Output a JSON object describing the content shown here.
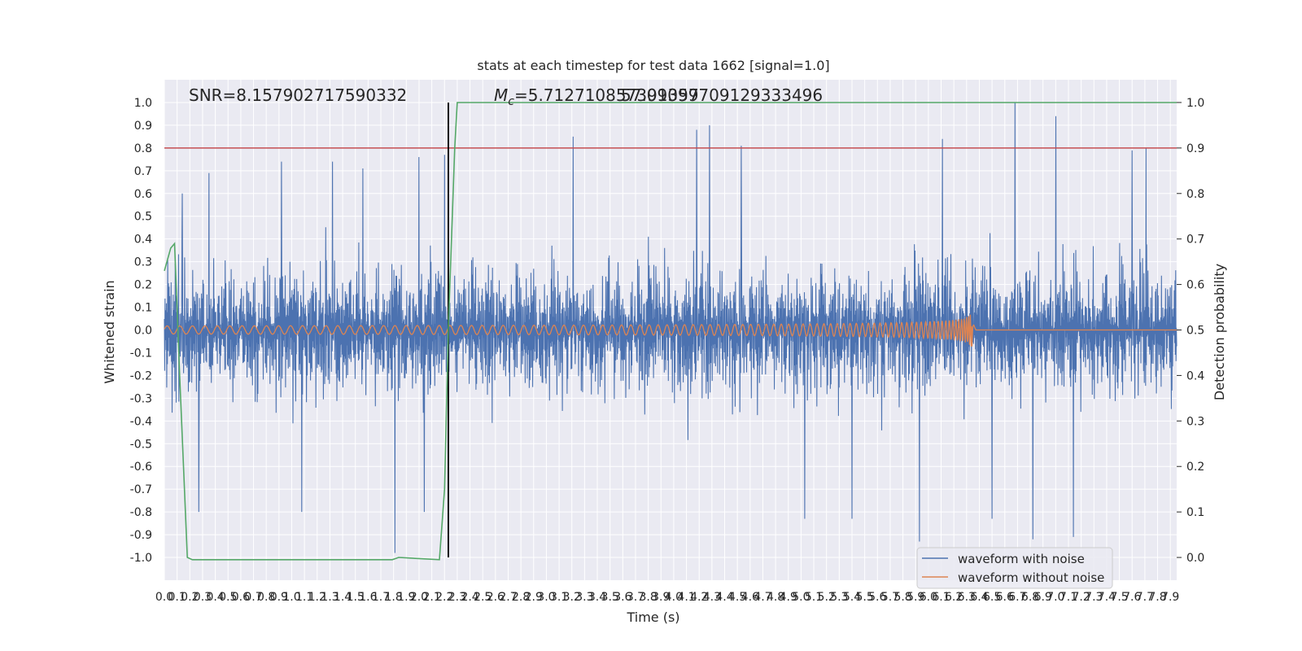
{
  "chart_data": {
    "type": "line",
    "title": "stats at each timestep for test data 1662 [signal=1.0]",
    "xlabel": "Time (s)",
    "ylabel": "Whitened strain",
    "y2label": "Detection probability",
    "xlim": [
      0.0,
      7.95
    ],
    "ylim": [
      -1.1,
      1.1
    ],
    "y2lim": [
      -0.05,
      1.05
    ],
    "xticks": [
      0.0,
      0.1,
      0.2,
      0.3,
      0.4,
      0.5,
      0.6,
      0.7,
      0.8,
      0.9,
      1.0,
      1.1,
      1.2,
      1.3,
      1.4,
      1.5,
      1.6,
      1.7,
      1.8,
      1.9,
      2.0,
      2.1,
      2.2,
      2.3,
      2.4,
      2.5,
      2.6,
      2.7,
      2.8,
      2.9,
      3.0,
      3.1,
      3.2,
      3.3,
      3.4,
      3.5,
      3.6,
      3.7,
      3.8,
      3.9,
      4.0,
      4.1,
      4.2,
      4.3,
      4.4,
      4.5,
      4.6,
      4.7,
      4.8,
      4.9,
      5.0,
      5.1,
      5.2,
      5.3,
      5.4,
      5.5,
      5.6,
      5.7,
      5.8,
      5.9,
      6.0,
      6.1,
      6.2,
      6.3,
      6.4,
      6.5,
      6.6,
      6.7,
      6.8,
      6.9,
      7.0,
      7.1,
      7.2,
      7.3,
      7.4,
      7.5,
      7.6,
      7.7,
      7.8,
      7.9
    ],
    "yticks": [
      1.0,
      0.9,
      0.8,
      0.7,
      0.6,
      0.5,
      0.4,
      0.3,
      0.2,
      0.1,
      0.0,
      -0.1,
      -0.2,
      -0.3,
      -0.4,
      -0.5,
      -0.6,
      -0.7,
      -0.8,
      -0.9,
      -1.0
    ],
    "y2ticks": [
      1.0,
      0.9,
      0.8,
      0.7,
      0.6,
      0.5,
      0.4,
      0.3,
      0.2,
      0.1,
      0.0
    ],
    "annotations": {
      "snr": "SNR=8.157902717590332",
      "mc_symbol": "M",
      "mc_subscript": "c",
      "mc_value": "=5.712710857391357",
      "overlap_value": "57.09099709129333496"
    },
    "threshold": {
      "axis": "y2",
      "value": 0.9,
      "color": "#c44e52"
    },
    "marker_time": 2.23,
    "series": [
      {
        "name": "waveform with noise",
        "color": "#4c72b0",
        "axis": "y",
        "description": "noisy whitened strain, roughly spanning -1 to 1 with peaks near 4.15 s and 6.7 s",
        "spikes": [
          [
            0.14,
            0.6
          ],
          [
            0.35,
            0.69
          ],
          [
            0.92,
            0.74
          ],
          [
            1.32,
            0.74
          ],
          [
            1.56,
            0.71
          ],
          [
            2.0,
            0.76
          ],
          [
            2.2,
            0.77
          ],
          [
            3.21,
            0.85
          ],
          [
            4.18,
            0.88
          ],
          [
            4.28,
            0.9
          ],
          [
            4.53,
            0.81
          ],
          [
            5.4,
            0.81
          ],
          [
            6.11,
            0.84
          ],
          [
            6.68,
            1.0
          ],
          [
            7.0,
            0.94
          ],
          [
            7.6,
            0.79
          ],
          [
            7.71,
            0.8
          ],
          [
            0.27,
            -0.8
          ],
          [
            1.08,
            -0.8
          ],
          [
            1.81,
            -0.98
          ],
          [
            2.04,
            -0.8
          ],
          [
            5.03,
            -0.83
          ],
          [
            5.4,
            -0.83
          ],
          [
            5.93,
            -0.93
          ],
          [
            6.5,
            -0.83
          ],
          [
            6.82,
            -0.92
          ],
          [
            7.14,
            -0.91
          ]
        ]
      },
      {
        "name": "waveform without noise",
        "color": "#dd8452",
        "axis": "y",
        "description": "clean chirp whose amplitude grows to about 0.2 at merger around 6.34 s, then falls to zero",
        "merger_time": 6.34,
        "peak_amplitude": 0.2
      },
      {
        "name": "detection probability",
        "color": "#55a868",
        "axis": "y2",
        "points": [
          [
            0.0,
            0.63
          ],
          [
            0.05,
            0.68
          ],
          [
            0.08,
            0.69
          ],
          [
            0.1,
            0.55
          ],
          [
            0.12,
            0.4
          ],
          [
            0.15,
            0.2
          ],
          [
            0.18,
            0.0
          ],
          [
            0.22,
            -0.005
          ],
          [
            1.79,
            -0.005
          ],
          [
            1.84,
            0.0
          ],
          [
            2.16,
            -0.005
          ],
          [
            2.2,
            0.15
          ],
          [
            2.23,
            0.5
          ],
          [
            2.28,
            0.9
          ],
          [
            2.3,
            1.0
          ],
          [
            7.95,
            1.0
          ]
        ]
      }
    ],
    "legend": {
      "position": "lower-right",
      "entries": [
        {
          "label": "waveform with noise",
          "color": "#4c72b0"
        },
        {
          "label": "waveform without noise",
          "color": "#dd8452"
        }
      ]
    }
  }
}
